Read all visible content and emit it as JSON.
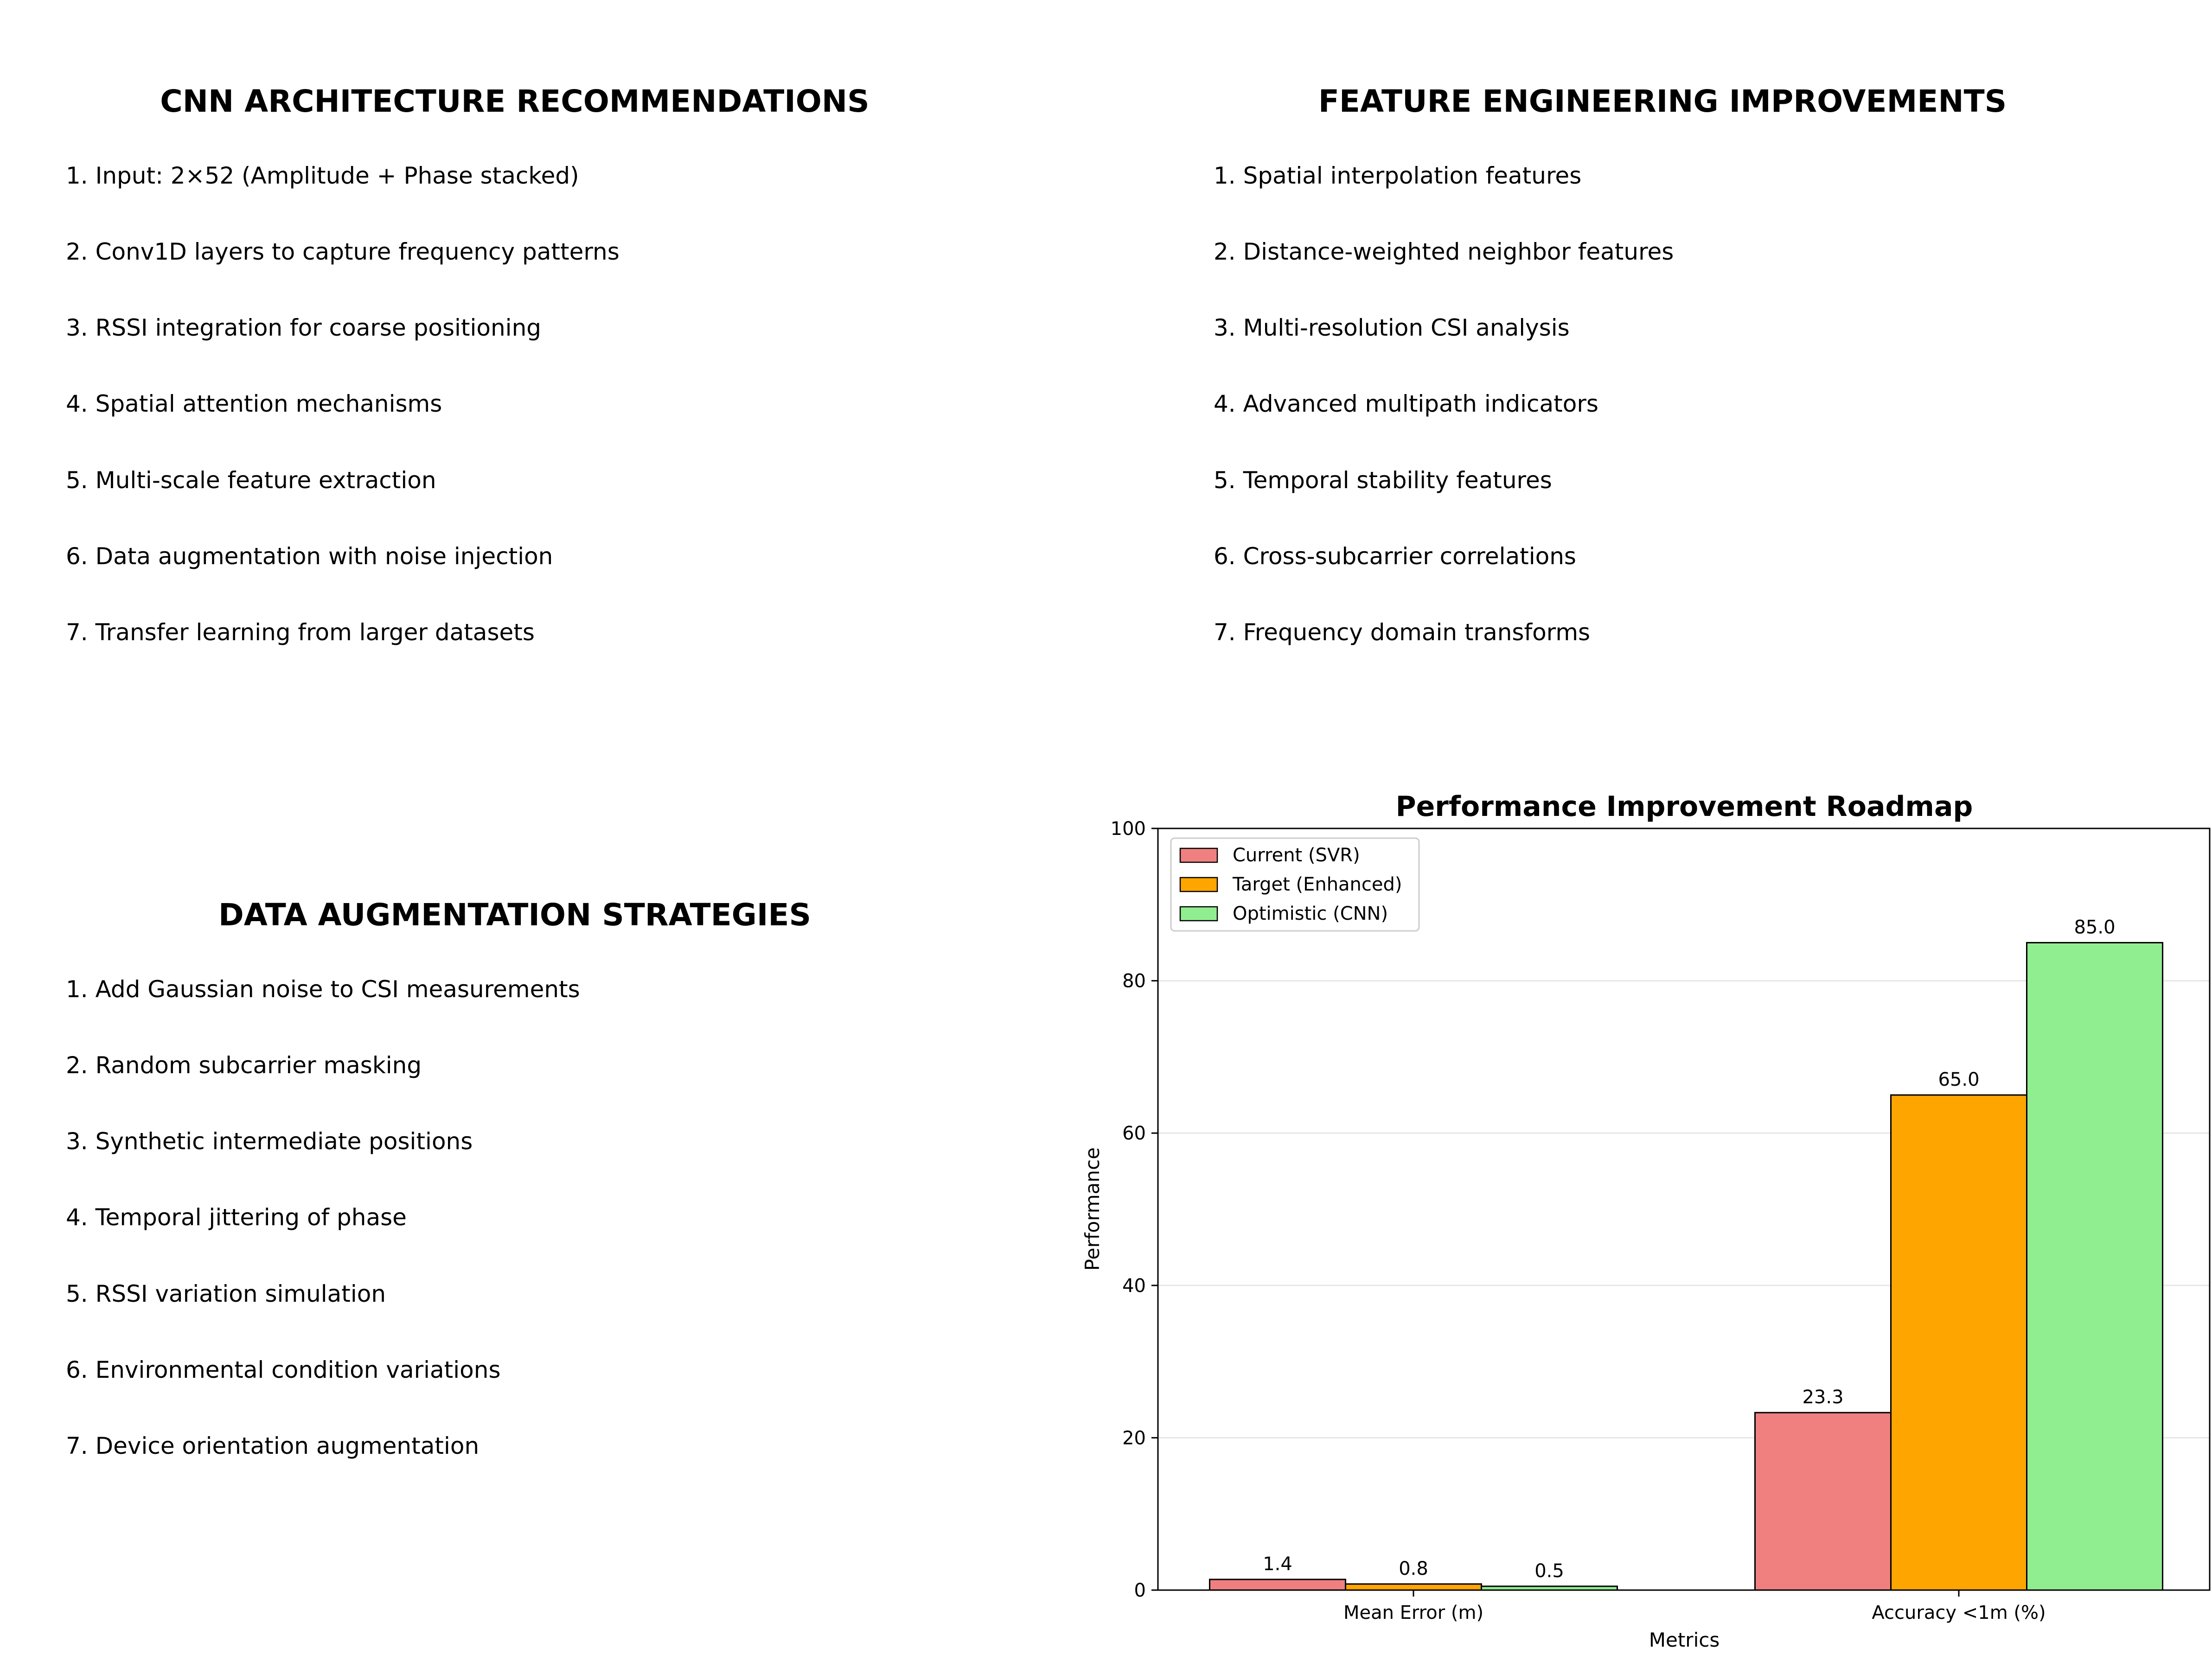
{
  "panels": {
    "cnn": {
      "title": "CNN ARCHITECTURE RECOMMENDATIONS",
      "items": [
        "1. Input: 2×52 (Amplitude + Phase stacked)",
        "2. Conv1D layers to capture frequency patterns",
        "3. RSSI integration for coarse positioning",
        "4. Spatial attention mechanisms",
        "5. Multi-scale feature extraction",
        "6. Data augmentation with noise injection",
        "7. Transfer learning from larger datasets"
      ]
    },
    "features": {
      "title": "FEATURE ENGINEERING IMPROVEMENTS",
      "items": [
        "1. Spatial interpolation features",
        "2. Distance-weighted neighbor features",
        "3. Multi-resolution CSI analysis",
        "4. Advanced multipath indicators",
        "5. Temporal stability features",
        "6. Cross-subcarrier correlations",
        "7. Frequency domain transforms"
      ]
    },
    "augmentation": {
      "title": "DATA AUGMENTATION STRATEGIES",
      "items": [
        "1. Add Gaussian noise to CSI measurements",
        "2. Random subcarrier masking",
        "3. Synthetic intermediate positions",
        "4. Temporal jittering of phase",
        "5. RSSI variation simulation",
        "6. Environmental condition variations",
        "7. Device orientation augmentation"
      ]
    }
  },
  "chart_data": {
    "type": "bar",
    "title": "Performance Improvement Roadmap",
    "xlabel": "Metrics",
    "ylabel": "Performance",
    "categories": [
      "Mean Error (m)",
      "Accuracy <1m (%)"
    ],
    "series": [
      {
        "name": "Current (SVR)",
        "color": "#f08080",
        "values": [
          1.4,
          23.3
        ]
      },
      {
        "name": "Target (Enhanced)",
        "color": "#ffa500",
        "values": [
          0.8,
          65.0
        ]
      },
      {
        "name": "Optimistic (CNN)",
        "color": "#90ee90",
        "values": [
          0.5,
          85.0
        ]
      }
    ],
    "value_labels": [
      [
        "1.4",
        "23.3"
      ],
      [
        "0.8",
        "65.0"
      ],
      [
        "0.5",
        "85.0"
      ]
    ],
    "ylim": [
      0,
      100
    ],
    "yticks": [
      0,
      20,
      40,
      60,
      80,
      100
    ],
    "grid": "y",
    "legend_position": "top-left"
  }
}
